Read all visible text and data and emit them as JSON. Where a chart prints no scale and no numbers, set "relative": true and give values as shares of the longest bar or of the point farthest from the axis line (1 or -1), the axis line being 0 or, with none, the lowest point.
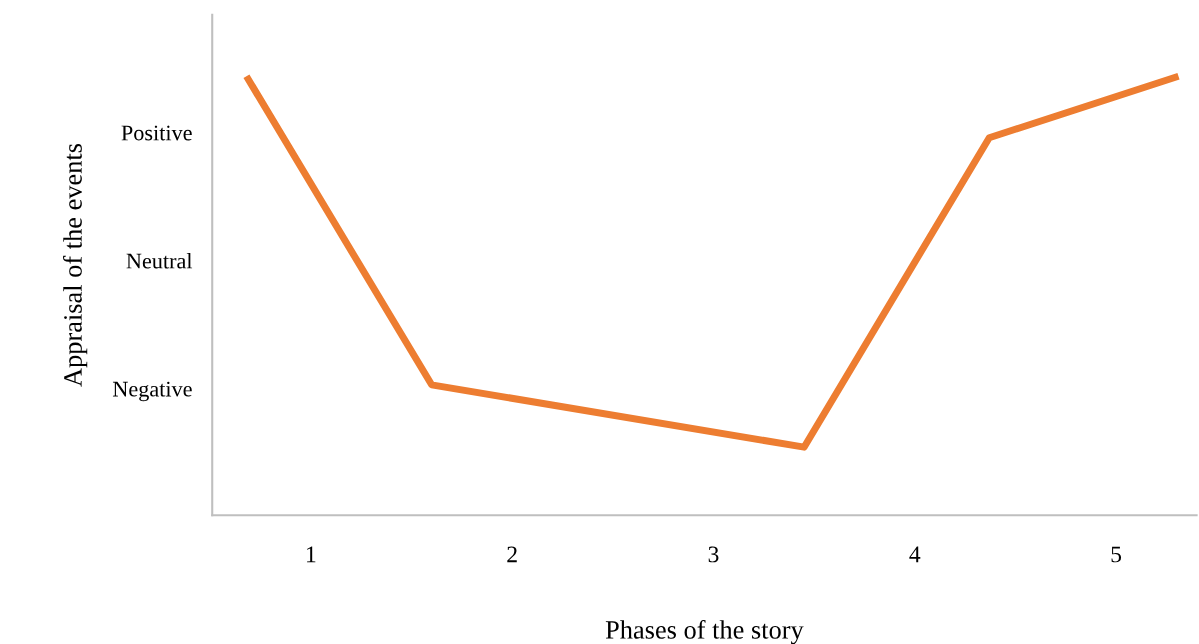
{
  "chart_data": {
    "type": "line",
    "xlabel": "Phases of the story",
    "ylabel": "Appraisal of the events",
    "relative": true,
    "annotations": [
      "Positive",
      "Neutral",
      "Negative"
    ],
    "x": [
      0.68,
      1.6,
      3.45,
      4.37,
      5.31
    ],
    "series": [
      {
        "color": "#ed7d31",
        "values": [
          1,
          0.297,
          0.155,
          0.86,
          1
        ]
      }
    ],
    "xlim": [
      0.51,
      5.4
    ],
    "xticks": [
      1,
      2,
      3,
      4,
      5
    ],
    "grid": false,
    "legend": false,
    "marker": "none",
    "line_style": "solid"
  }
}
